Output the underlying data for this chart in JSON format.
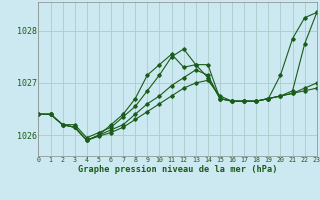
{
  "title": "Graphe pression niveau de la mer (hPa)",
  "background_color": "#cce8f0",
  "grid_color": "#aacccc",
  "line_color": "#1a5c1a",
  "x_min": 0,
  "x_max": 23,
  "y_min": 1025.6,
  "y_max": 1028.55,
  "yticks": [
    1026,
    1027,
    1028
  ],
  "xtick_labels": [
    "0",
    "1",
    "2",
    "3",
    "4",
    "5",
    "6",
    "7",
    "8",
    "9",
    "10",
    "11",
    "12",
    "13",
    "14",
    "15",
    "16",
    "17",
    "18",
    "19",
    "20",
    "21",
    "22",
    "23"
  ],
  "series": [
    [
      1026.4,
      1026.4,
      1026.2,
      1026.2,
      1025.95,
      1026.05,
      1026.15,
      1026.35,
      1026.55,
      1026.85,
      1027.15,
      1027.5,
      1027.65,
      1027.35,
      1027.35,
      1026.7,
      1026.65,
      1026.65,
      1026.65,
      1026.7,
      1027.15,
      1027.85,
      1028.25,
      1028.35
    ],
    [
      1026.4,
      1026.4,
      1026.2,
      1026.15,
      1025.9,
      1026.0,
      1026.2,
      1026.4,
      1026.7,
      1027.15,
      1027.35,
      1027.55,
      1027.3,
      1027.35,
      1027.1,
      1026.7,
      1026.65,
      1026.65,
      1026.65,
      1026.7,
      1026.75,
      1026.85,
      1027.75,
      1028.35
    ],
    [
      1026.4,
      1026.4,
      1026.2,
      1026.15,
      1025.9,
      1026.0,
      1026.1,
      1026.2,
      1026.4,
      1026.6,
      1026.75,
      1026.95,
      1027.1,
      1027.25,
      1027.15,
      1026.7,
      1026.65,
      1026.65,
      1026.65,
      1026.7,
      1026.75,
      1026.8,
      1026.9,
      1027.0
    ],
    [
      1026.4,
      1026.4,
      1026.2,
      1026.15,
      1025.9,
      1025.98,
      1026.05,
      1026.15,
      1026.3,
      1026.45,
      1026.6,
      1026.75,
      1026.9,
      1027.0,
      1027.05,
      1026.75,
      1026.65,
      1026.65,
      1026.65,
      1026.7,
      1026.75,
      1026.8,
      1026.85,
      1026.9
    ]
  ]
}
